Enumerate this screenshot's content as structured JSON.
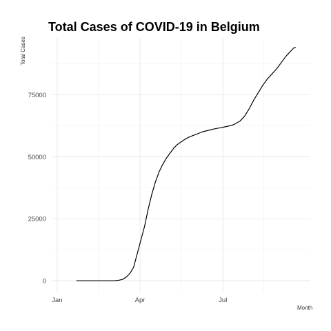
{
  "chart_data": {
    "type": "line",
    "title": "Total Cases of COVID-19 in Belgium",
    "xlabel": "Month",
    "ylabel": "Total Cases",
    "x_ticks": [
      "Jan",
      "Apr",
      "Jul"
    ],
    "y_ticks": [
      "0",
      "25000",
      "50000",
      "75000"
    ],
    "ylim": [
      -5000,
      98000
    ],
    "xlim": [
      "2019-12-26",
      "2020-10-05"
    ],
    "grid": true,
    "legend": "none",
    "line_color": "#000000",
    "x": [
      "2020-01-22",
      "2020-02-15",
      "2020-03-01",
      "2020-03-05",
      "2020-03-09",
      "2020-03-13",
      "2020-03-17",
      "2020-03-21",
      "2020-03-25",
      "2020-03-29",
      "2020-04-02",
      "2020-04-06",
      "2020-04-10",
      "2020-04-14",
      "2020-04-18",
      "2020-04-22",
      "2020-04-26",
      "2020-04-30",
      "2020-05-04",
      "2020-05-08",
      "2020-05-12",
      "2020-05-16",
      "2020-05-20",
      "2020-05-25",
      "2020-06-01",
      "2020-06-08",
      "2020-06-15",
      "2020-06-22",
      "2020-06-29",
      "2020-07-06",
      "2020-07-13",
      "2020-07-20",
      "2020-07-25",
      "2020-07-30",
      "2020-08-04",
      "2020-08-09",
      "2020-08-14",
      "2020-08-19",
      "2020-08-24",
      "2020-08-29",
      "2020-09-03",
      "2020-09-08",
      "2020-09-13",
      "2020-09-17",
      "2020-09-19"
    ],
    "y": [
      0,
      0,
      0,
      20,
      200,
      550,
      1500,
      3000,
      5500,
      11000,
      16500,
      22000,
      29000,
      35000,
      40000,
      44000,
      47000,
      49500,
      51500,
      53500,
      55000,
      56000,
      57000,
      58000,
      59000,
      60000,
      60700,
      61300,
      61800,
      62300,
      63000,
      64500,
      66500,
      69500,
      73000,
      76000,
      79000,
      81500,
      83500,
      85500,
      88000,
      90500,
      92500,
      94000,
      94200
    ]
  }
}
